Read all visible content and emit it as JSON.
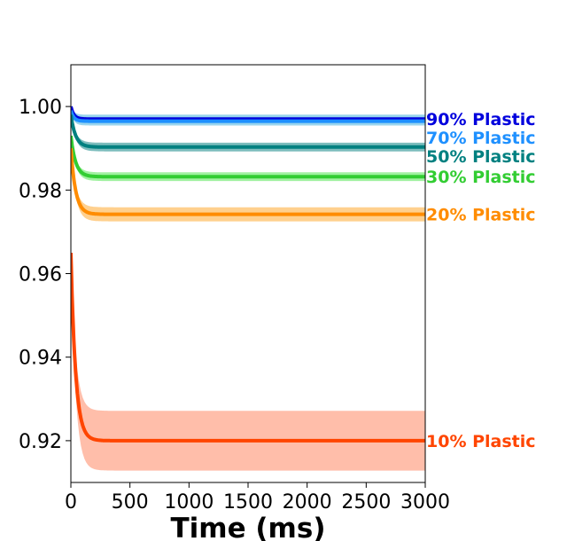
{
  "chart_data": {
    "type": "line",
    "title": "",
    "xlabel": "Time (ms)",
    "ylabel": "",
    "xlim": [
      0,
      3000
    ],
    "ylim": [
      0.91,
      1.01
    ],
    "xticks": [
      0,
      500,
      1000,
      1500,
      2000,
      2500,
      3000
    ],
    "xtick_labels": [
      "0",
      "500",
      "1000",
      "1500",
      "2000",
      "2500",
      "3000"
    ],
    "yticks": [
      0.92,
      0.94,
      0.96,
      0.98,
      1.0
    ],
    "ytick_labels": [
      "0.92",
      "0.94",
      "0.96",
      "0.98",
      "1.00"
    ],
    "grid": false,
    "legend": "none",
    "series": [
      {
        "name": "90% Plastic",
        "color": "#0000dd",
        "band_color": "#87ceeb",
        "start": 1.0,
        "plateau": 0.997,
        "band": 0.0008,
        "tau": 25
      },
      {
        "name": "70% Plastic",
        "color": "#1e90ff",
        "band_color": "#87ceeb",
        "start": 0.999,
        "plateau": 0.9965,
        "band": 0.0008,
        "tau": 25
      },
      {
        "name": "50% Plastic",
        "color": "#008080",
        "band_color": "#66b2b2",
        "start": 0.998,
        "plateau": 0.9903,
        "band": 0.0008,
        "tau": 40
      },
      {
        "name": "30% Plastic",
        "color": "#32cd32",
        "band_color": "#90ee90",
        "start": 0.993,
        "plateau": 0.9832,
        "band": 0.0008,
        "tau": 40
      },
      {
        "name": "20% Plastic",
        "color": "#ff8c00",
        "band_color": "#ffc87a",
        "start": 0.99,
        "plateau": 0.9742,
        "band": 0.0013,
        "tau": 40
      },
      {
        "name": "10% Plastic",
        "color": "#ff4500",
        "band_color": "#ffb39b",
        "start": 0.965,
        "plateau": 0.92,
        "band": 0.0055,
        "tau": 40
      }
    ]
  }
}
